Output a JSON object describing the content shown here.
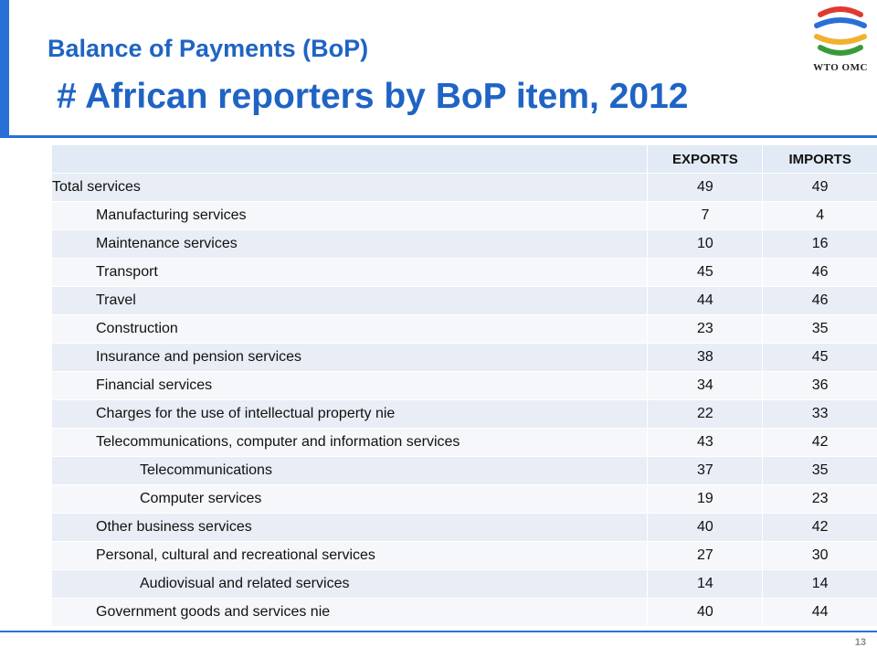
{
  "title": {
    "line1": "Balance of Payments (BoP)",
    "line2": "# African reporters by BoP item, 2012"
  },
  "logo": {
    "text": "WTO OMC",
    "icon": "wto-logo-icon",
    "colors": [
      "#e03a2f",
      "#2a6fd6",
      "#f2b02e",
      "#3a9a3a"
    ]
  },
  "table": {
    "headers": [
      "",
      "EXPORTS",
      "IMPORTS"
    ],
    "rows": [
      {
        "label": "Total services",
        "level": 0,
        "exports": "49",
        "imports": "49"
      },
      {
        "label": "Manufacturing services",
        "level": 1,
        "exports": "7",
        "imports": "4"
      },
      {
        "label": "Maintenance services",
        "level": 1,
        "exports": "10",
        "imports": "16"
      },
      {
        "label": "Transport",
        "level": 1,
        "exports": "45",
        "imports": "46"
      },
      {
        "label": "Travel",
        "level": 1,
        "exports": "44",
        "imports": "46"
      },
      {
        "label": "Construction",
        "level": 1,
        "exports": "23",
        "imports": "35"
      },
      {
        "label": "Insurance and pension services",
        "level": 1,
        "exports": "38",
        "imports": "45"
      },
      {
        "label": "Financial services",
        "level": 1,
        "exports": "34",
        "imports": "36"
      },
      {
        "label": "Charges for the use of intellectual property nie",
        "level": 1,
        "exports": "22",
        "imports": "33"
      },
      {
        "label": "Telecommunications, computer and information services",
        "level": 1,
        "exports": "43",
        "imports": "42"
      },
      {
        "label": "Telecommunications",
        "level": 2,
        "exports": "37",
        "imports": "35"
      },
      {
        "label": "Computer services",
        "level": 2,
        "exports": "19",
        "imports": "23"
      },
      {
        "label": "Other business services",
        "level": 1,
        "exports": "40",
        "imports": "42"
      },
      {
        "label": "Personal, cultural and recreational services",
        "level": 1,
        "exports": "27",
        "imports": "30"
      },
      {
        "label": "Audiovisual and related services",
        "level": 2,
        "exports": "14",
        "imports": "14"
      },
      {
        "label": "Government goods and services nie",
        "level": 1,
        "exports": "40",
        "imports": "44"
      }
    ]
  },
  "footer": {
    "page_number": "13"
  },
  "colors": {
    "accent": "#2a6fd6",
    "title": "#1f64c4"
  }
}
